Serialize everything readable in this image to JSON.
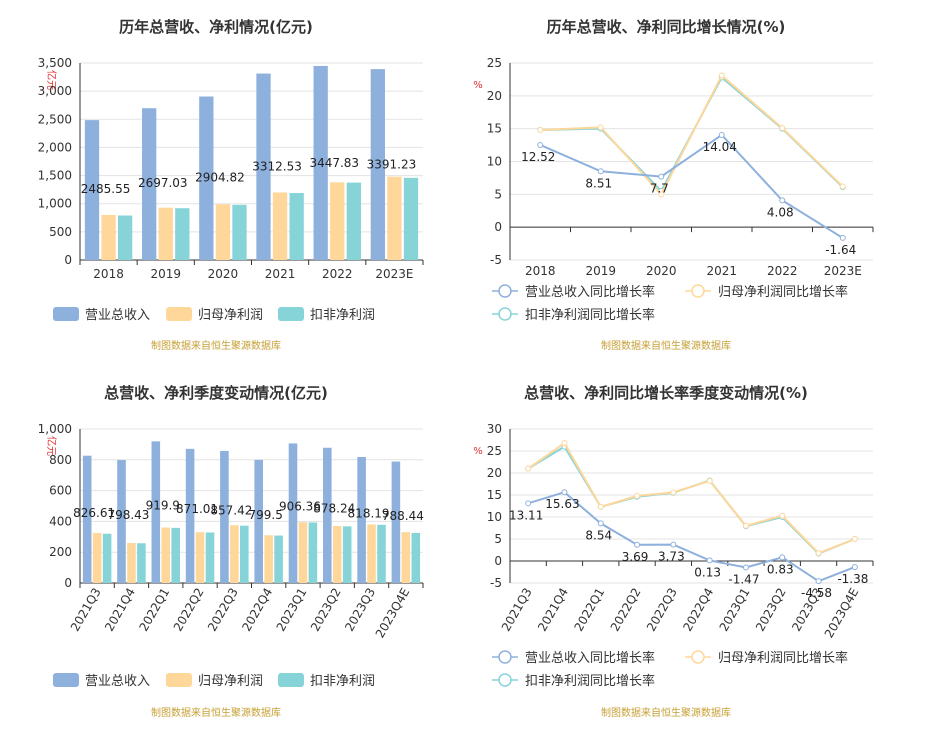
{
  "colors": {
    "revenue": "#8eb0dd",
    "net_profit": "#ffd79a",
    "deducted_profit": "#86d4d8",
    "axis": "#333333",
    "grid": "#e3e3e3",
    "source": "#c7a035",
    "unit": "#e03030"
  },
  "chart_data": [
    {
      "id": "annual_amount",
      "type": "bar",
      "title": "历年总营收、净利情况(亿元)",
      "ylabel": "亿元",
      "categories": [
        "2018",
        "2019",
        "2020",
        "2021",
        "2022",
        "2023E"
      ],
      "ylim": [
        0,
        3500
      ],
      "yticks": [
        0,
        500,
        1000,
        1500,
        2000,
        2500,
        3000,
        3500
      ],
      "ytick_labels": [
        "0",
        "500",
        "1,000",
        "1,500",
        "2,000",
        "2,500",
        "3,000",
        "3,500"
      ],
      "series": [
        {
          "name": "营业总收入",
          "values": [
            2485.55,
            2697.03,
            2904.82,
            3312.53,
            3447.83,
            3391.23
          ],
          "labels": [
            "2485.55",
            "2697.03",
            "2904.82",
            "3312.53",
            "3447.83",
            "3391.23"
          ]
        },
        {
          "name": "归母净利润",
          "values": [
            800,
            930,
            990,
            1200,
            1380,
            1480
          ]
        },
        {
          "name": "扣非净利润",
          "values": [
            790,
            920,
            980,
            1190,
            1375,
            1460
          ]
        }
      ],
      "legend": "bottom",
      "grid": true,
      "source": "制图数据来自恒生聚源数据库"
    },
    {
      "id": "annual_growth",
      "type": "line",
      "title": "历年总营收、净利同比增长情况(%)",
      "ylabel": "%",
      "categories": [
        "2018",
        "2019",
        "2020",
        "2021",
        "2022",
        "2023E"
      ],
      "ylim": [
        -5,
        25
      ],
      "yticks": [
        -5,
        0,
        5,
        10,
        15,
        20,
        25
      ],
      "ytick_labels": [
        "-5",
        "0",
        "5",
        "10",
        "15",
        "20",
        "25"
      ],
      "series": [
        {
          "name": "营业总收入同比增长率",
          "values": [
            12.52,
            8.51,
            7.7,
            14.04,
            4.08,
            -1.64
          ],
          "labels": [
            "12.52",
            "8.51",
            "7.7",
            "14.04",
            "4.08",
            "-1.64"
          ]
        },
        {
          "name": "归母净利润同比增长率",
          "values": [
            14.8,
            15.2,
            5.0,
            23.1,
            15.1,
            6.2
          ]
        },
        {
          "name": "扣非净利润同比增长率",
          "values": [
            14.8,
            15.0,
            5.5,
            22.8,
            15.0,
            6.1
          ]
        }
      ],
      "legend": "bottom",
      "grid": true,
      "source": "制图数据来自恒生聚源数据库"
    },
    {
      "id": "quarterly_amount",
      "type": "bar",
      "title": "总营收、净利季度变动情况(亿元)",
      "ylabel": "亿元",
      "categories": [
        "2021Q3",
        "2021Q4",
        "2022Q1",
        "2022Q2",
        "2022Q3",
        "2022Q4",
        "2023Q1",
        "2023Q2",
        "2023Q3",
        "2023Q4E"
      ],
      "ylim": [
        0,
        1000
      ],
      "yticks": [
        0,
        200,
        400,
        600,
        800,
        1000
      ],
      "ytick_labels": [
        "0",
        "200",
        "400",
        "600",
        "800",
        "1,000"
      ],
      "series": [
        {
          "name": "营业总收入",
          "values": [
            826.61,
            798.43,
            919.9,
            871.01,
            857.42,
            799.5,
            906.36,
            878.24,
            818.19,
            788.44
          ],
          "labels": [
            "826.61",
            "798.43",
            "919.9",
            "871.01",
            "857.42",
            "799.5",
            "906.36",
            "878.24",
            "818.19",
            "788.44"
          ]
        },
        {
          "name": "归母净利润",
          "values": [
            325,
            260,
            360,
            330,
            375,
            310,
            395,
            370,
            380,
            330
          ]
        },
        {
          "name": "扣非净利润",
          "values": [
            320,
            258,
            358,
            328,
            372,
            308,
            393,
            368,
            378,
            325
          ]
        }
      ],
      "legend": "bottom",
      "grid": true,
      "source": "制图数据来自恒生聚源数据库"
    },
    {
      "id": "quarterly_growth",
      "type": "line",
      "title": "总营收、净利同比增长率季度变动情况(%)",
      "ylabel": "%",
      "categories": [
        "2021Q3",
        "2021Q4",
        "2022Q1",
        "2022Q2",
        "2022Q3",
        "2022Q4",
        "2023Q1",
        "2023Q2",
        "2023Q3",
        "2023Q4E"
      ],
      "ylim": [
        -5,
        30
      ],
      "yticks": [
        -5,
        0,
        5,
        10,
        15,
        20,
        25,
        30
      ],
      "ytick_labels": [
        "-5",
        "0",
        "5",
        "10",
        "15",
        "20",
        "25",
        "30"
      ],
      "series": [
        {
          "name": "营业总收入同比增长率",
          "values": [
            13.11,
            15.63,
            8.54,
            3.69,
            3.73,
            0.13,
            -1.47,
            0.83,
            -4.58,
            -1.38
          ],
          "labels": [
            "13.11",
            "15.63",
            "8.54",
            "3.69",
            "3.73",
            "0.13",
            "-1.47",
            "0.83",
            "-4.58",
            "-1.38"
          ]
        },
        {
          "name": "归母净利润同比增长率",
          "values": [
            21.0,
            26.8,
            12.3,
            14.8,
            15.6,
            18.2,
            8.0,
            10.3,
            1.8,
            5.0
          ]
        },
        {
          "name": "扣非净利润同比增长率",
          "values": [
            21.0,
            26.0,
            12.3,
            14.6,
            15.5,
            18.3,
            7.9,
            10.0,
            1.7,
            5.0
          ]
        }
      ],
      "legend": "bottom",
      "grid": true,
      "source": "制图数据来自恒生聚源数据库"
    }
  ]
}
